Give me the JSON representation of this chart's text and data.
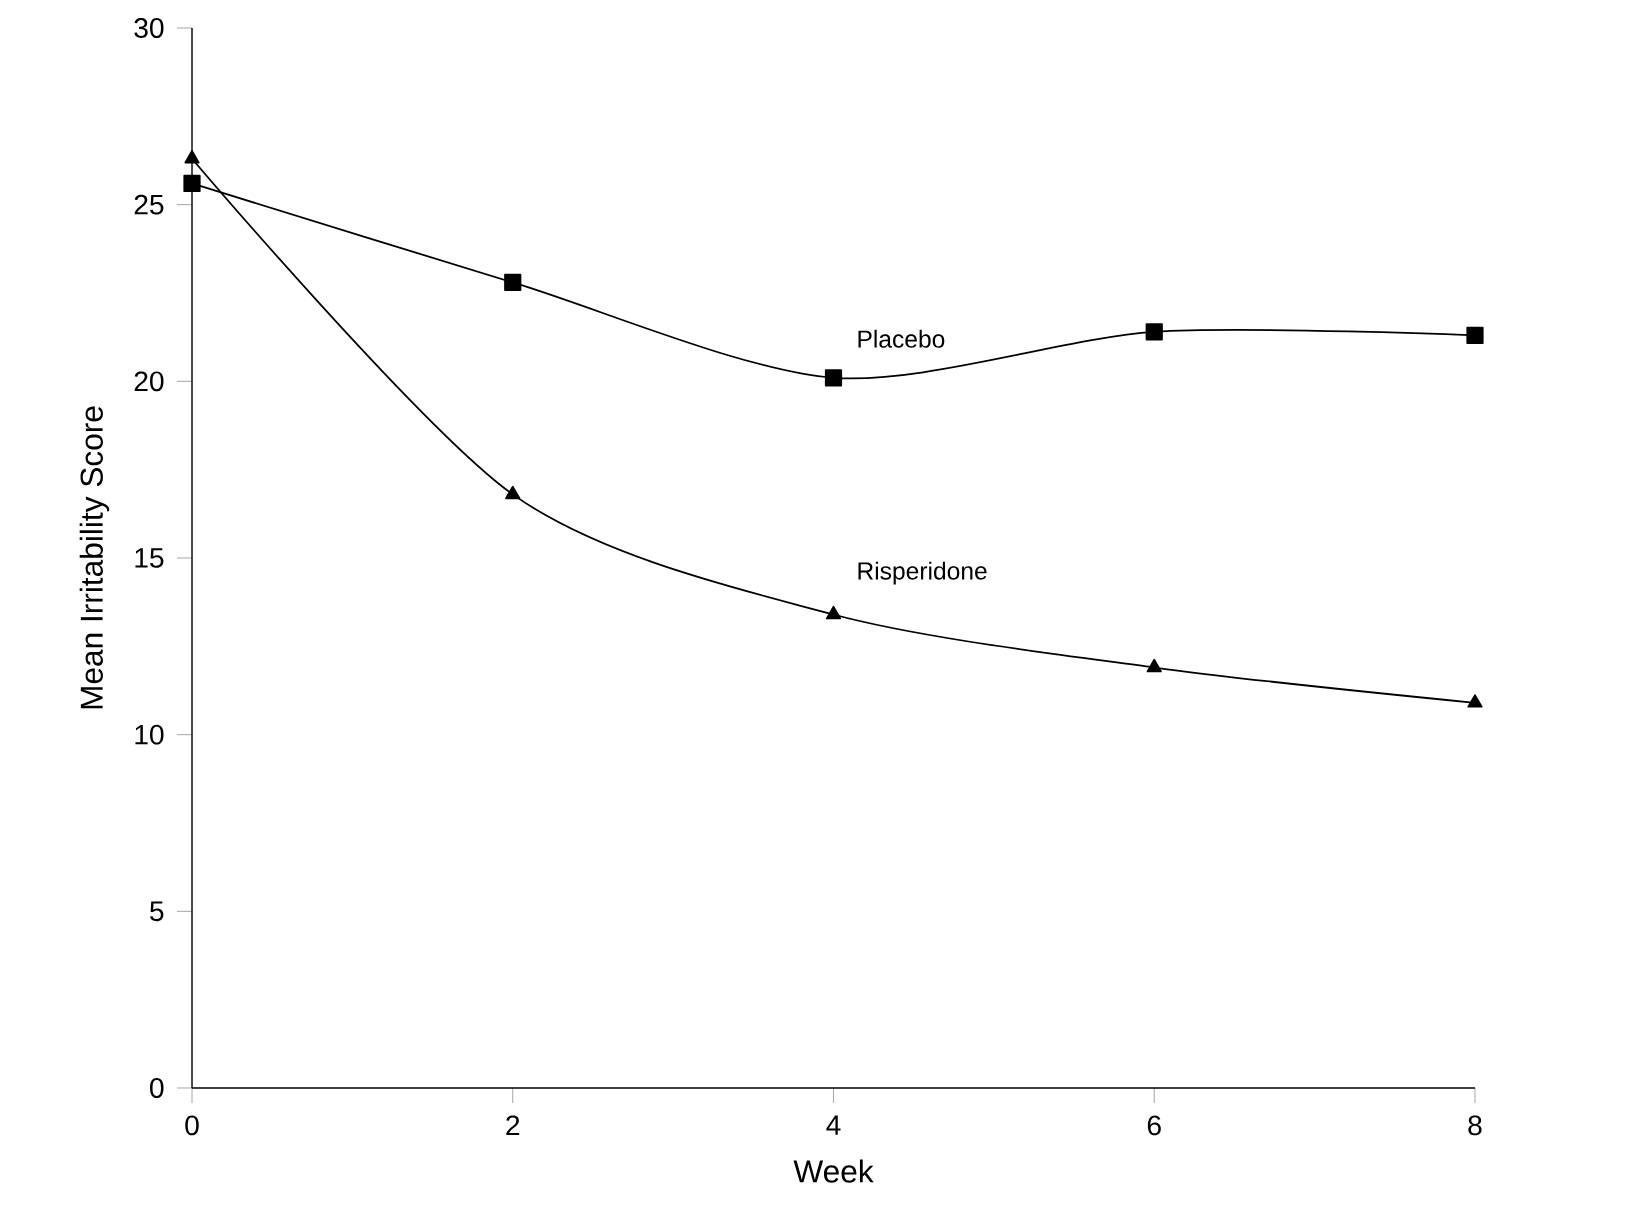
{
  "chart_data": {
    "type": "line",
    "xlabel": "Week",
    "ylabel": "Mean Irritability Score",
    "x": [
      0,
      2,
      4,
      6,
      8
    ],
    "xlim": [
      0,
      8
    ],
    "xticks": [
      0,
      2,
      4,
      6,
      8
    ],
    "ylim": [
      0,
      30
    ],
    "yticks": [
      0,
      5,
      10,
      15,
      20,
      25,
      30
    ],
    "grid": false,
    "legend": false,
    "line_style": "solid",
    "series": [
      {
        "name": "Placebo",
        "color": "#000000",
        "marker": "square",
        "values": [
          25.6,
          22.8,
          20.1,
          21.4,
          21.3
        ]
      },
      {
        "name": "Risperidone",
        "color": "#000000",
        "marker": "triangle",
        "values": [
          26.3,
          16.8,
          13.4,
          11.9,
          10.9
        ]
      }
    ]
  }
}
